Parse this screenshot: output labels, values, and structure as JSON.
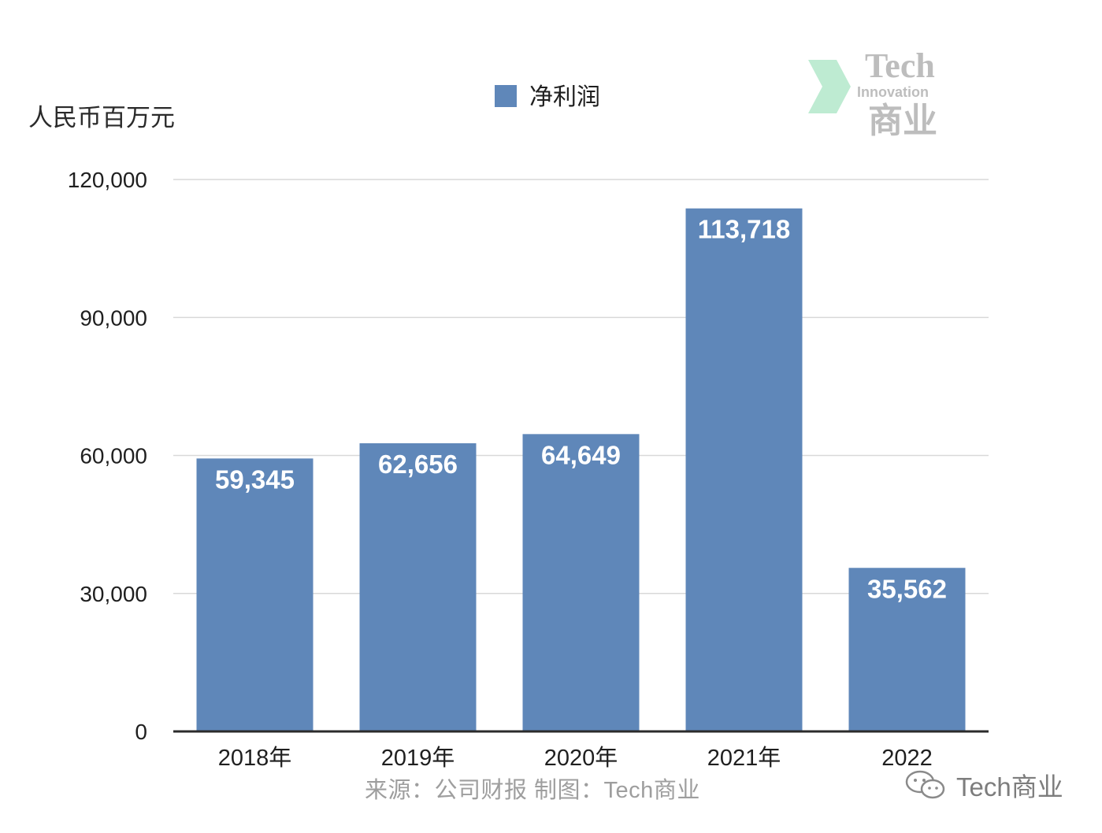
{
  "chart_data": {
    "type": "bar",
    "ylabel": "人民币百万元",
    "categories": [
      "2018年",
      "2019年",
      "2020年",
      "2021年",
      "2022"
    ],
    "series": [
      {
        "name": "净利润",
        "values": [
          59345,
          62656,
          64649,
          113718,
          35562
        ],
        "labels": [
          "59,345",
          "62,656",
          "64,649",
          "113,718",
          "35,562"
        ],
        "color": "#5f87b9"
      }
    ],
    "ylim": [
      0,
      120000
    ],
    "yticks": [
      0,
      30000,
      60000,
      90000,
      120000
    ],
    "ytick_labels": [
      "0",
      "30,000",
      "60,000",
      "90,000",
      "120,000"
    ],
    "grid": true,
    "legend_position": "top-center"
  },
  "source_text": "来源：公司财报 制图：Tech商业",
  "watermark": {
    "wechat_text": "Tech商业",
    "logo_top": "Tech",
    "logo_mid": "Innovation",
    "logo_bottom": "商业"
  },
  "colors": {
    "bar": "#5f87b9",
    "grid": "#d9d9d9",
    "axis": "#2b2b2b",
    "text": "#1f1f1f",
    "source": "#9e9e9e"
  }
}
